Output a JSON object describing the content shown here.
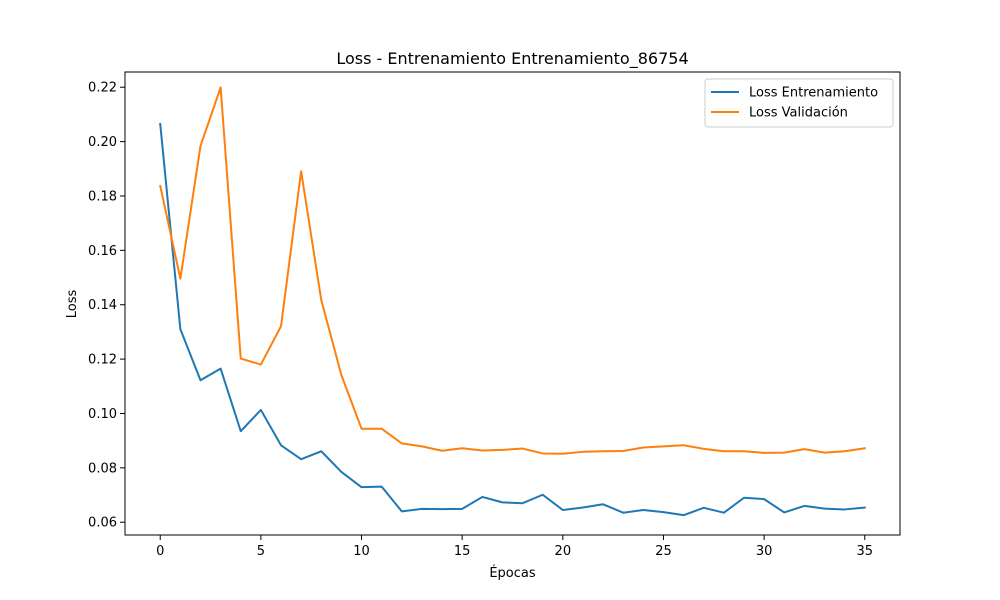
{
  "chart_data": {
    "type": "line",
    "title": "Loss - Entrenamiento Entrenamiento_86754",
    "xlabel": "Épocas",
    "ylabel": "Loss",
    "xlim": [
      -1.75,
      36.75
    ],
    "ylim": [
      0.0553,
      0.2256
    ],
    "xticks": [
      0,
      5,
      10,
      15,
      20,
      25,
      30,
      35
    ],
    "yticks": [
      0.06,
      0.08,
      0.1,
      0.12,
      0.14,
      0.16,
      0.18,
      0.2,
      0.22
    ],
    "ytick_labels": [
      "0.06",
      "0.08",
      "0.10",
      "0.12",
      "0.14",
      "0.16",
      "0.18",
      "0.20",
      "0.22"
    ],
    "legend_position": "top-right",
    "grid": false,
    "x": [
      0,
      1,
      2,
      3,
      4,
      5,
      6,
      7,
      8,
      9,
      10,
      11,
      12,
      13,
      14,
      15,
      16,
      17,
      18,
      19,
      20,
      21,
      22,
      23,
      24,
      25,
      26,
      27,
      28,
      29,
      30,
      31,
      32,
      33,
      34,
      35
    ],
    "series": [
      {
        "name": "Loss Entrenamiento",
        "color": "#1f77b4",
        "values": [
          0.2065,
          0.131,
          0.1122,
          0.1165,
          0.0935,
          0.1013,
          0.0883,
          0.0832,
          0.0861,
          0.0785,
          0.0729,
          0.0731,
          0.064,
          0.0649,
          0.0648,
          0.0649,
          0.0693,
          0.0673,
          0.067,
          0.0701,
          0.0645,
          0.0654,
          0.0666,
          0.0635,
          0.0645,
          0.0637,
          0.0626,
          0.0653,
          0.0635,
          0.069,
          0.0685,
          0.0636,
          0.066,
          0.065,
          0.0647,
          0.0654
        ]
      },
      {
        "name": "Loss Validación",
        "color": "#ff7f0e",
        "values": [
          0.1837,
          0.1496,
          0.1984,
          0.2199,
          0.1202,
          0.118,
          0.1321,
          0.1891,
          0.1417,
          0.1141,
          0.0944,
          0.0944,
          0.089,
          0.0879,
          0.0863,
          0.0872,
          0.0864,
          0.0866,
          0.0871,
          0.0853,
          0.0852,
          0.0859,
          0.0861,
          0.0862,
          0.0875,
          0.0879,
          0.0883,
          0.087,
          0.0861,
          0.0861,
          0.0855,
          0.0856,
          0.0869,
          0.0856,
          0.0861,
          0.0872
        ]
      }
    ]
  }
}
